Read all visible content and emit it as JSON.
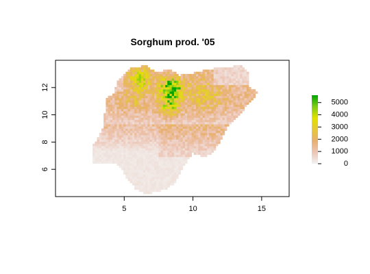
{
  "title": "Sorghum prod. '05",
  "map": {
    "x_ticks": [
      5,
      10,
      15
    ],
    "y_ticks": [
      6,
      8,
      10,
      12
    ],
    "x_range": [
      0,
      17
    ],
    "y_range": [
      4,
      14
    ],
    "extent": {
      "lon": [
        2.7,
        14.7
      ],
      "lat": [
        4.2,
        13.9
      ]
    }
  },
  "legend": {
    "ticks": [
      0,
      1000,
      2000,
      3000,
      4000,
      5000
    ],
    "range": [
      0,
      5600
    ],
    "colors": [
      "#F2F2F2",
      "#EDC5B5",
      "#E8B070",
      "#E6C838",
      "#E2E100",
      "#7FCC16",
      "#00A600"
    ]
  }
}
